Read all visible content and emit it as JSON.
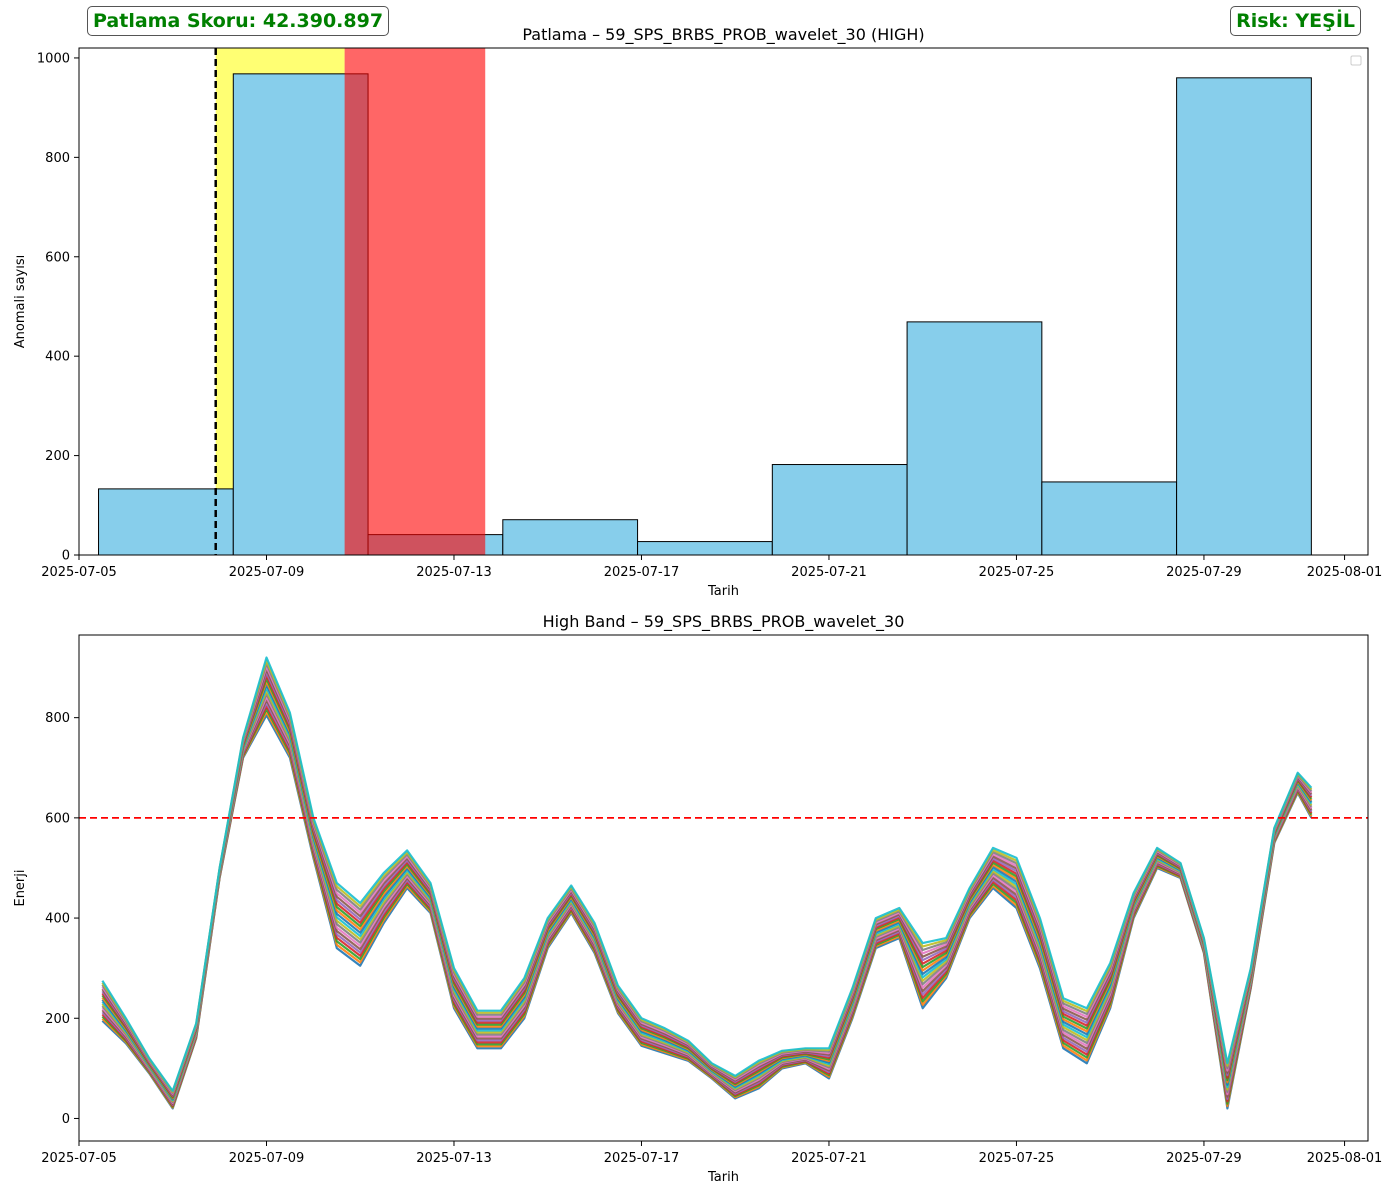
{
  "header": {
    "score_label": "Patlama Skoru: 42.390.897",
    "risk_label": "Risk: YEŞİL",
    "badge_color": "#008000"
  },
  "chart_data": [
    {
      "type": "bar",
      "title": "Patlama – 59_SPS_BRBS_PROB_wavelet_30 (HIGH)",
      "xlabel": "Tarih",
      "ylabel": "Anomali sayısı",
      "xlim": [
        "2025-07-05T00:00",
        "2025-08-01T12:00"
      ],
      "ylim": [
        0,
        1020
      ],
      "x_ticks": [
        "2025-07-05",
        "2025-07-09",
        "2025-07-13",
        "2025-07-17",
        "2025-07-21",
        "2025-07-25",
        "2025-07-29",
        "2025-08-01"
      ],
      "y_ticks": [
        0,
        200,
        400,
        600,
        800,
        1000
      ],
      "bar_color": "#87ceeb",
      "bars": [
        {
          "start": "2025-07-05T10:00",
          "end": "2025-07-08T07:00",
          "value": 133
        },
        {
          "start": "2025-07-08T07:00",
          "end": "2025-07-11T04:00",
          "value": 968
        },
        {
          "start": "2025-07-11T04:00",
          "end": "2025-07-14T01:00",
          "value": 41
        },
        {
          "start": "2025-07-14T01:00",
          "end": "2025-07-16T22:00",
          "value": 71
        },
        {
          "start": "2025-07-16T22:00",
          "end": "2025-07-19T19:00",
          "value": 27
        },
        {
          "start": "2025-07-19T19:00",
          "end": "2025-07-22T16:00",
          "value": 182
        },
        {
          "start": "2025-07-22T16:00",
          "end": "2025-07-25T13:00",
          "value": 469
        },
        {
          "start": "2025-07-25T13:00",
          "end": "2025-07-28T10:00",
          "value": 147
        },
        {
          "start": "2025-07-28T10:00",
          "end": "2025-07-31T07:00",
          "value": 960
        }
      ],
      "highlight_spans": [
        {
          "start": "2025-07-07T22:00",
          "end": "2025-07-10T16:00",
          "color": "#ffff00",
          "opacity": 0.55
        },
        {
          "start": "2025-07-10T16:00",
          "end": "2025-07-13T16:00",
          "color": "#ff0000",
          "opacity": 0.6
        }
      ],
      "vline": {
        "x": "2025-07-07T22:00",
        "color": "#000000",
        "style": "dashed"
      },
      "legend": "top-right (empty)"
    },
    {
      "type": "line",
      "title": "High Band – 59_SPS_BRBS_PROB_wavelet_30",
      "xlabel": "Tarih",
      "ylabel": "Enerji",
      "xlim": [
        "2025-07-05T00:00",
        "2025-08-01T12:00"
      ],
      "ylim": [
        -45,
        965
      ],
      "x_ticks": [
        "2025-07-05",
        "2025-07-09",
        "2025-07-13",
        "2025-07-17",
        "2025-07-21",
        "2025-07-25",
        "2025-07-29",
        "2025-08-01"
      ],
      "y_ticks": [
        0,
        200,
        400,
        600,
        800
      ],
      "threshold": {
        "y": 600,
        "color": "#ff0000",
        "style": "dashed"
      },
      "series_count": 20,
      "colors": [
        "#1f77b4",
        "#ff7f0e",
        "#2ca02c",
        "#d62728",
        "#9467bd",
        "#8c564b",
        "#e377c2",
        "#7f7f7f",
        "#bcbd22",
        "#17becf"
      ],
      "x": [
        "2025-07-05T12:00",
        "2025-07-06T00:00",
        "2025-07-06T12:00",
        "2025-07-07T00:00",
        "2025-07-07T12:00",
        "2025-07-08T00:00",
        "2025-07-08T12:00",
        "2025-07-09T00:00",
        "2025-07-09T12:00",
        "2025-07-10T00:00",
        "2025-07-10T12:00",
        "2025-07-11T00:00",
        "2025-07-11T12:00",
        "2025-07-12T00:00",
        "2025-07-12T12:00",
        "2025-07-13T00:00",
        "2025-07-13T12:00",
        "2025-07-14T00:00",
        "2025-07-14T12:00",
        "2025-07-15T00:00",
        "2025-07-15T12:00",
        "2025-07-16T00:00",
        "2025-07-16T12:00",
        "2025-07-17T00:00",
        "2025-07-17T12:00",
        "2025-07-18T00:00",
        "2025-07-18T12:00",
        "2025-07-19T00:00",
        "2025-07-19T12:00",
        "2025-07-20T00:00",
        "2025-07-20T12:00",
        "2025-07-21T00:00",
        "2025-07-21T12:00",
        "2025-07-22T00:00",
        "2025-07-22T12:00",
        "2025-07-23T00:00",
        "2025-07-23T12:00",
        "2025-07-24T00:00",
        "2025-07-24T12:00",
        "2025-07-25T00:00",
        "2025-07-25T12:00",
        "2025-07-26T00:00",
        "2025-07-26T12:00",
        "2025-07-27T00:00",
        "2025-07-27T12:00",
        "2025-07-28T00:00",
        "2025-07-28T12:00",
        "2025-07-29T00:00",
        "2025-07-29T12:00",
        "2025-07-30T00:00",
        "2025-07-30T12:00",
        "2025-07-31T00:00",
        "2025-07-31T07:00"
      ],
      "lower": [
        195,
        150,
        90,
        20,
        160,
        480,
        720,
        805,
        720,
        520,
        340,
        305,
        390,
        460,
        410,
        220,
        140,
        140,
        200,
        340,
        410,
        330,
        210,
        145,
        130,
        115,
        80,
        40,
        60,
        100,
        110,
        80,
        200,
        340,
        360,
        220,
        280,
        400,
        460,
        420,
        300,
        140,
        110,
        220,
        400,
        500,
        480,
        330,
        20,
        260,
        550,
        650,
        600
      ],
      "upper": [
        275,
        200,
        120,
        55,
        190,
        500,
        760,
        920,
        810,
        600,
        470,
        430,
        490,
        535,
        470,
        300,
        215,
        215,
        280,
        400,
        465,
        390,
        265,
        200,
        180,
        155,
        110,
        85,
        115,
        135,
        140,
        140,
        260,
        400,
        420,
        350,
        360,
        460,
        540,
        520,
        400,
        240,
        220,
        310,
        450,
        540,
        510,
        360,
        110,
        300,
        580,
        690,
        660
      ]
    }
  ]
}
